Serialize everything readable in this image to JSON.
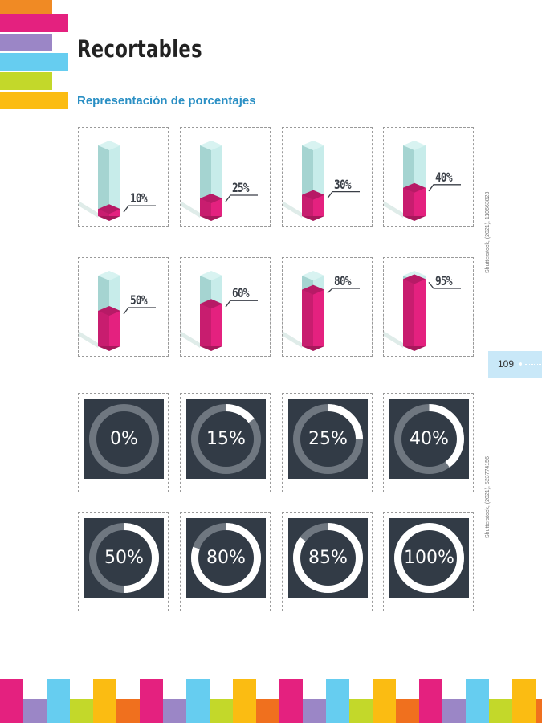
{
  "header": {
    "title": "Recortables",
    "subtitle": "Representación de porcentajes"
  },
  "colors": {
    "magenta": "#e4217f",
    "magenta_top": "#b71a66",
    "glass": "#c7ecea",
    "glass_dark": "#a5d4d1",
    "donut_bg": "#323b46",
    "donut_track": "#6f7780",
    "donut_fill": "#ffffff",
    "subtitle_blue": "#2a8fc4"
  },
  "bar_cards": [
    {
      "label": "10%",
      "value": 10
    },
    {
      "label": "25%",
      "value": 25
    },
    {
      "label": "30%",
      "value": 30
    },
    {
      "label": "40%",
      "value": 40
    },
    {
      "label": "50%",
      "value": 50
    },
    {
      "label": "60%",
      "value": 60
    },
    {
      "label": "80%",
      "value": 80
    },
    {
      "label": "95%",
      "value": 95
    }
  ],
  "donut_cards": [
    {
      "label": "0%",
      "value": 0
    },
    {
      "label": "15%",
      "value": 15
    },
    {
      "label": "25%",
      "value": 25
    },
    {
      "label": "40%",
      "value": 40
    },
    {
      "label": "50%",
      "value": 50
    },
    {
      "label": "80%",
      "value": 80
    },
    {
      "label": "85%",
      "value": 85
    },
    {
      "label": "100%",
      "value": 100
    }
  ],
  "credits": {
    "credit_top": "Shutterstock, (2021), 110663823",
    "credit_bottom": "Shutterstock, (2021), 523774156"
  },
  "page": {
    "number": "109"
  }
}
